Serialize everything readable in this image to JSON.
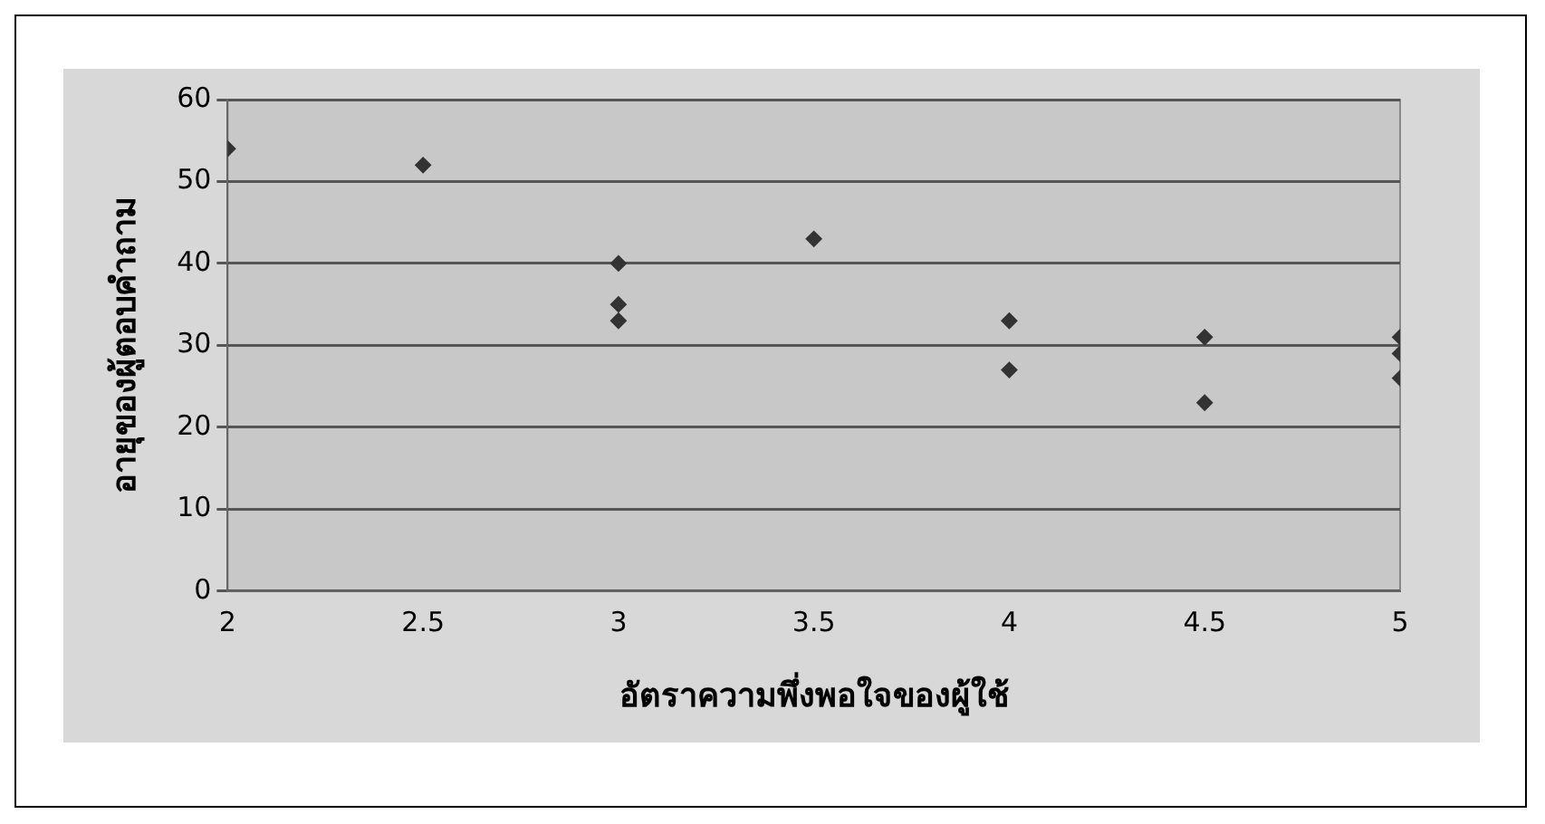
{
  "chart_data": {
    "type": "scatter",
    "xlabel": "อัตราความพึ่งพอใจของผู้ใช้",
    "ylabel": "อายุของผู้ตอบคำถาม",
    "x": [
      2,
      2.5,
      3,
      3,
      3,
      3.5,
      4,
      4,
      4.5,
      4.5,
      5,
      5,
      5
    ],
    "series": [
      {
        "color": "#333333",
        "values": [
          54,
          52,
          40,
          35,
          33,
          43,
          33,
          27,
          31,
          23,
          31,
          29,
          26
        ]
      }
    ],
    "xlim": [
      2,
      5
    ],
    "xticks": [
      2,
      2.5,
      3,
      3.5,
      4,
      4.5,
      5
    ],
    "ylim": [
      0,
      60
    ],
    "yticks": [
      0,
      10,
      20,
      30,
      40,
      50,
      60
    ],
    "grid": "y",
    "legend": false,
    "marker": "diamond"
  }
}
